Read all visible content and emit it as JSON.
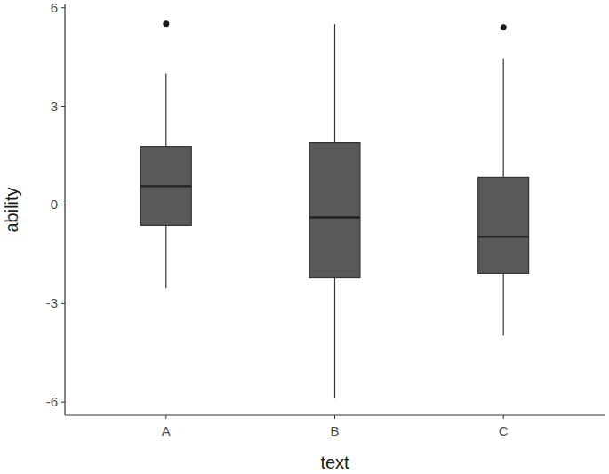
{
  "chart_data": {
    "type": "box",
    "x_label": "text",
    "y_label": "ability",
    "categories": [
      "A",
      "B",
      "C"
    ],
    "min": [
      -2.54,
      -5.89,
      -3.97
    ],
    "q1": [
      -0.62,
      -2.22,
      -2.08
    ],
    "median": [
      0.57,
      -0.38,
      -0.97
    ],
    "q3": [
      1.78,
      1.89,
      0.84
    ],
    "max": [
      4.0,
      5.5,
      4.46
    ],
    "outliers": [
      [
        5.51
      ],
      [],
      [
        5.4
      ]
    ],
    "ylim": [
      -6.4,
      6.1
    ],
    "yticks": [
      -6,
      -3,
      0,
      3,
      6
    ],
    "color": "#595959",
    "grid": false
  }
}
